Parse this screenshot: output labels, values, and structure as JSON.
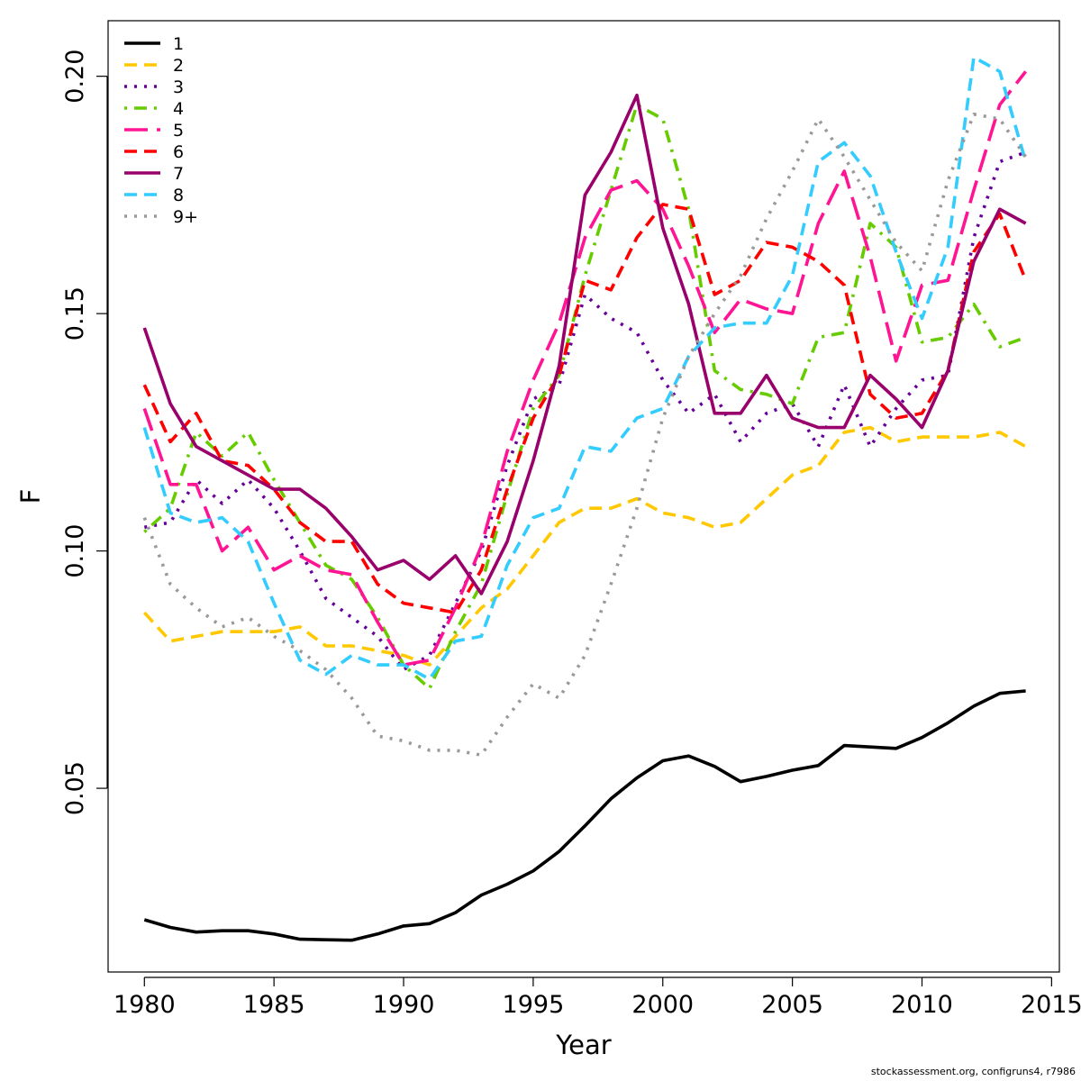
{
  "chart_data": {
    "type": "line",
    "xlabel": "Year",
    "ylabel": "F",
    "xlim": [
      1978.6,
      2015.3
    ],
    "ylim": [
      0.0113,
      0.2117
    ],
    "x_ticks": [
      1980,
      1985,
      1990,
      1995,
      2000,
      2005,
      2010,
      2015
    ],
    "y_ticks": [
      0.05,
      0.1,
      0.15,
      0.2
    ],
    "x_tick_labels": [
      "1980",
      "1985",
      "1990",
      "1995",
      "2000",
      "2005",
      "2010",
      "2015"
    ],
    "y_tick_labels": [
      "0.05",
      "0.10",
      "0.15",
      "0.20"
    ],
    "grid": false,
    "legend_position": "top-left",
    "x": [
      1980,
      1981,
      1982,
      1983,
      1984,
      1985,
      1986,
      1987,
      1988,
      1989,
      1990,
      1991,
      1992,
      1993,
      1994,
      1995,
      1996,
      1997,
      1998,
      1999,
      2000,
      2001,
      2002,
      2003,
      2004,
      2005,
      2006,
      2007,
      2008,
      2009,
      2010,
      2011,
      2012,
      2013,
      2014
    ],
    "series": [
      {
        "name": "1",
        "color": "#000000",
        "dash": "solid",
        "values": [
          0.0223,
          0.0207,
          0.0197,
          0.02,
          0.02,
          0.0193,
          0.0182,
          0.0181,
          0.018,
          0.0193,
          0.021,
          0.0215,
          0.0238,
          0.0275,
          0.0298,
          0.0326,
          0.0367,
          0.0421,
          0.0478,
          0.0522,
          0.0558,
          0.0568,
          0.0546,
          0.0514,
          0.0525,
          0.0538,
          0.0548,
          0.059,
          0.0587,
          0.0584,
          0.0607,
          0.0638,
          0.0673,
          0.07,
          0.0705
        ]
      },
      {
        "name": "2",
        "color": "#FFC800",
        "dash": "dashed",
        "values": [
          0.087,
          0.081,
          0.082,
          0.083,
          0.083,
          0.083,
          0.084,
          0.08,
          0.08,
          0.079,
          0.078,
          0.076,
          0.082,
          0.088,
          0.092,
          0.099,
          0.106,
          0.109,
          0.109,
          0.111,
          0.108,
          0.107,
          0.105,
          0.106,
          0.111,
          0.116,
          0.118,
          0.125,
          0.126,
          0.123,
          0.124,
          0.124,
          0.124,
          0.125,
          0.122
        ]
      },
      {
        "name": "3",
        "color": "#660099",
        "dash": "dotted",
        "values": [
          0.105,
          0.106,
          0.115,
          0.11,
          0.115,
          0.109,
          0.1,
          0.09,
          0.086,
          0.082,
          0.075,
          0.078,
          0.089,
          0.1,
          0.118,
          0.132,
          0.135,
          0.154,
          0.149,
          0.146,
          0.136,
          0.129,
          0.133,
          0.123,
          0.129,
          0.131,
          0.122,
          0.135,
          0.122,
          0.13,
          0.136,
          0.137,
          0.166,
          0.182,
          0.184
        ]
      },
      {
        "name": "4",
        "color": "#66CC00",
        "dash": "dotdash",
        "values": [
          0.104,
          0.109,
          0.125,
          0.12,
          0.125,
          0.115,
          0.106,
          0.097,
          0.094,
          0.086,
          0.076,
          0.071,
          0.083,
          0.093,
          0.112,
          0.13,
          0.137,
          0.158,
          0.176,
          0.194,
          0.191,
          0.172,
          0.138,
          0.134,
          0.133,
          0.131,
          0.145,
          0.146,
          0.169,
          0.164,
          0.144,
          0.145,
          0.152,
          0.143,
          0.145
        ]
      },
      {
        "name": "5",
        "color": "#FF1493",
        "dash": "longdash",
        "values": [
          0.13,
          0.114,
          0.114,
          0.1,
          0.105,
          0.096,
          0.099,
          0.096,
          0.095,
          0.085,
          0.076,
          0.077,
          0.088,
          0.101,
          0.121,
          0.136,
          0.148,
          0.166,
          0.176,
          0.178,
          0.172,
          0.16,
          0.146,
          0.153,
          0.151,
          0.15,
          0.169,
          0.18,
          0.162,
          0.14,
          0.156,
          0.157,
          0.176,
          0.194,
          0.201
        ]
      },
      {
        "name": "6",
        "color": "#FF0000",
        "dash": "dashed",
        "values": [
          0.135,
          0.123,
          0.129,
          0.119,
          0.118,
          0.113,
          0.106,
          0.102,
          0.102,
          0.093,
          0.089,
          0.088,
          0.087,
          0.096,
          0.113,
          0.128,
          0.137,
          0.157,
          0.155,
          0.166,
          0.173,
          0.172,
          0.154,
          0.157,
          0.165,
          0.164,
          0.161,
          0.156,
          0.133,
          0.128,
          0.129,
          0.138,
          0.163,
          0.171,
          0.157
        ]
      },
      {
        "name": "7",
        "color": "#99006B",
        "dash": "solid",
        "values": [
          0.147,
          0.131,
          0.122,
          0.119,
          0.116,
          0.113,
          0.113,
          0.109,
          0.103,
          0.096,
          0.098,
          0.094,
          0.099,
          0.091,
          0.102,
          0.119,
          0.139,
          0.175,
          0.184,
          0.196,
          0.168,
          0.152,
          0.129,
          0.129,
          0.137,
          0.128,
          0.126,
          0.126,
          0.137,
          0.132,
          0.126,
          0.138,
          0.161,
          0.172,
          0.169
        ]
      },
      {
        "name": "8",
        "color": "#33CCFF",
        "dash": "dashed",
        "values": [
          0.126,
          0.108,
          0.106,
          0.107,
          0.102,
          0.089,
          0.077,
          0.074,
          0.078,
          0.076,
          0.076,
          0.073,
          0.081,
          0.082,
          0.097,
          0.107,
          0.109,
          0.122,
          0.121,
          0.128,
          0.13,
          0.141,
          0.147,
          0.148,
          0.148,
          0.158,
          0.182,
          0.186,
          0.179,
          0.163,
          0.149,
          0.164,
          0.204,
          0.201,
          0.182
        ]
      },
      {
        "name": "9+",
        "color": "#999999",
        "dash": "dotted",
        "values": [
          0.107,
          0.093,
          0.088,
          0.084,
          0.086,
          0.082,
          0.079,
          0.075,
          0.069,
          0.061,
          0.06,
          0.058,
          0.058,
          0.057,
          0.065,
          0.072,
          0.069,
          0.078,
          0.093,
          0.109,
          0.128,
          0.141,
          0.15,
          0.158,
          0.17,
          0.18,
          0.191,
          0.183,
          0.174,
          0.165,
          0.159,
          0.178,
          0.192,
          0.191,
          0.183
        ]
      }
    ]
  },
  "footer": "stockassessment.org, configruns4, r7986"
}
